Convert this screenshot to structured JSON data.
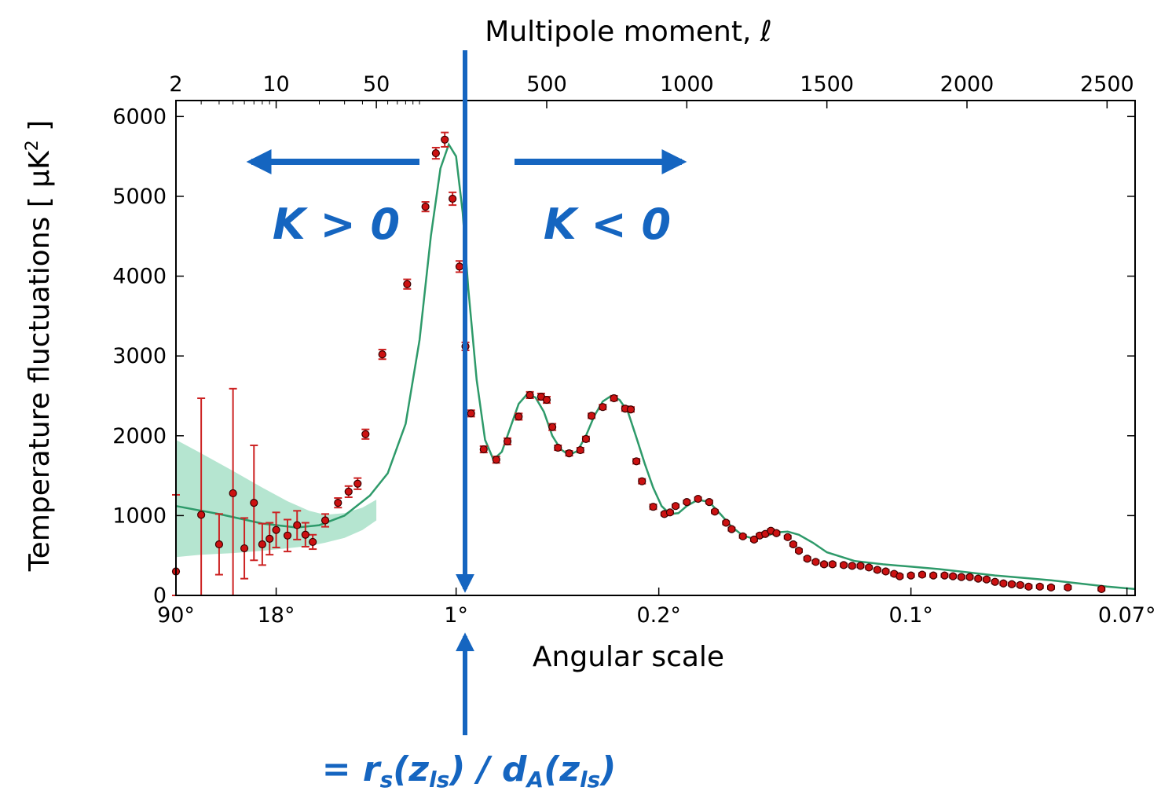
{
  "chart_data": {
    "type": "scatter",
    "title": "",
    "top_axis": {
      "label": "Multipole moment, ℓ",
      "ticks": [
        {
          "value": 2,
          "label": "2"
        },
        {
          "value": 10,
          "label": "10"
        },
        {
          "value": 50,
          "label": "50"
        },
        {
          "value": 500,
          "label": "500"
        },
        {
          "value": 1000,
          "label": "1000"
        },
        {
          "value": 1500,
          "label": "1500"
        },
        {
          "value": 2000,
          "label": "2000"
        },
        {
          "value": 2500,
          "label": "2500"
        }
      ],
      "scale": "log for ℓ < 200, linear for ℓ ≥ 200"
    },
    "xlabel": "Angular scale",
    "x_ticks": [
      {
        "ell": 2,
        "label": "90°"
      },
      {
        "ell": 10,
        "label": "18°"
      },
      {
        "ell": 180,
        "label": "1°"
      },
      {
        "ell": 900,
        "label": "0.2°"
      },
      {
        "ell": 1800,
        "label": "0.1°"
      },
      {
        "ell": 2571,
        "label": "0.07°"
      }
    ],
    "ylabel_main": "Temperature fluctuations [ μK",
    "ylabel_sup": "2",
    "ylabel_end": " ]",
    "ylim": [
      0,
      6200
    ],
    "y_ticks": [
      0,
      1000,
      2000,
      3000,
      4000,
      5000,
      6000
    ],
    "grid": false,
    "colors": {
      "points": "#cc1111",
      "errorbars": "#cc2222",
      "model": "#2e9a6a",
      "variance_band": "#a8e0c8",
      "annotations": "#1565c0"
    },
    "series": [
      {
        "name": "",
        "x": [
          2,
          3,
          4,
          5,
          6,
          7,
          8,
          9,
          10,
          12,
          14,
          16,
          18,
          22,
          27,
          32,
          37,
          42,
          55,
          82,
          110,
          130,
          150,
          170,
          190,
          210,
          230,
          275,
          320,
          360,
          400,
          440,
          480,
          500,
          520,
          540,
          580,
          620,
          640,
          660,
          700,
          740,
          780,
          800,
          820,
          840,
          880,
          920,
          940,
          960,
          1000,
          1040,
          1080,
          1100,
          1140,
          1160,
          1200,
          1240,
          1260,
          1280,
          1300,
          1320,
          1360,
          1380,
          1400,
          1430,
          1460,
          1490,
          1520,
          1560,
          1590,
          1620,
          1650,
          1680,
          1710,
          1740,
          1760,
          1800,
          1840,
          1880,
          1920,
          1950,
          1980,
          2010,
          2040,
          2070,
          2100,
          2130,
          2160,
          2190,
          2220,
          2260,
          2300,
          2360,
          2480
        ],
        "y": [
          300,
          1010,
          640,
          1280,
          590,
          1160,
          640,
          710,
          820,
          750,
          880,
          760,
          670,
          940,
          1160,
          1300,
          1400,
          2020,
          3020,
          3900,
          4870,
          5540,
          5710,
          4970,
          4120,
          3120,
          2280,
          1830,
          1700,
          1930,
          2240,
          2510,
          2490,
          2450,
          2110,
          1850,
          1780,
          1820,
          1960,
          2250,
          2360,
          2470,
          2340,
          2330,
          1680,
          1430,
          1110,
          1020,
          1040,
          1120,
          1170,
          1210,
          1170,
          1050,
          910,
          830,
          740,
          700,
          750,
          770,
          810,
          780,
          730,
          640,
          560,
          460,
          420,
          390,
          390,
          380,
          370,
          370,
          350,
          320,
          300,
          270,
          240,
          250,
          260,
          250,
          250,
          240,
          230,
          230,
          210,
          200,
          170,
          150,
          140,
          130,
          110,
          110,
          100,
          100,
          80
        ],
        "yerr": [
          960,
          1460,
          380,
          1310,
          380,
          720,
          260,
          200,
          220,
          200,
          180,
          150,
          90,
          80,
          60,
          70,
          70,
          60,
          60,
          60,
          60,
          70,
          90,
          80,
          70,
          50,
          40,
          40,
          40,
          40,
          40,
          40,
          40,
          40,
          40,
          30,
          30,
          30,
          30,
          30,
          30,
          30,
          30,
          30,
          30,
          30,
          30,
          20,
          20,
          20,
          20,
          20,
          20,
          20,
          20,
          20,
          20,
          20,
          20,
          20,
          20,
          20,
          20,
          20,
          20,
          20,
          20,
          20,
          20,
          20,
          20,
          20,
          20,
          20,
          20,
          20,
          20,
          20,
          20,
          20,
          20,
          20,
          20,
          20,
          20,
          20,
          20,
          20,
          20,
          20,
          20,
          20,
          20,
          20,
          20
        ]
      }
    ],
    "model_curve": {
      "x": [
        2,
        4,
        8,
        14,
        20,
        30,
        45,
        60,
        80,
        100,
        120,
        140,
        160,
        180,
        200,
        220,
        250,
        280,
        310,
        340,
        370,
        400,
        430,
        460,
        490,
        520,
        550,
        580,
        610,
        640,
        670,
        700,
        730,
        760,
        790,
        820,
        850,
        880,
        910,
        940,
        970,
        1000,
        1040,
        1080,
        1120,
        1160,
        1200,
        1240,
        1280,
        1320,
        1360,
        1400,
        1450,
        1500,
        1600,
        1700,
        1800,
        1900,
        2000,
        2100,
        2200,
        2300,
        2400,
        2500,
        2600
      ],
      "y": [
        1120,
        1020,
        900,
        850,
        880,
        1000,
        1250,
        1530,
        2150,
        3200,
        4500,
        5350,
        5650,
        5500,
        4800,
        3850,
        2700,
        1950,
        1700,
        1800,
        2100,
        2400,
        2520,
        2480,
        2300,
        2000,
        1830,
        1760,
        1810,
        2000,
        2250,
        2430,
        2500,
        2450,
        2300,
        1980,
        1650,
        1350,
        1120,
        1020,
        1030,
        1120,
        1200,
        1170,
        1020,
        860,
        750,
        710,
        740,
        790,
        800,
        760,
        660,
        540,
        430,
        390,
        360,
        330,
        290,
        250,
        220,
        190,
        150,
        110,
        80
      ]
    },
    "variance_band": {
      "x": [
        2,
        3,
        5,
        8,
        12,
        17,
        22,
        30,
        40,
        50
      ],
      "upper": [
        1950,
        1780,
        1560,
        1350,
        1180,
        1060,
        1010,
        1030,
        1100,
        1200
      ],
      "lower": [
        480,
        510,
        530,
        560,
        590,
        620,
        660,
        720,
        820,
        940
      ]
    }
  },
  "annotations": {
    "left_label": "K > 0",
    "right_label": "K < 0",
    "bottom_formula": {
      "eq": "= r",
      "s": "s",
      "open1": "(z",
      "ls1": "ls",
      "mid": ") / d",
      "A": "A",
      "open2": "(z",
      "ls2": "ls",
      "close": ")"
    }
  }
}
